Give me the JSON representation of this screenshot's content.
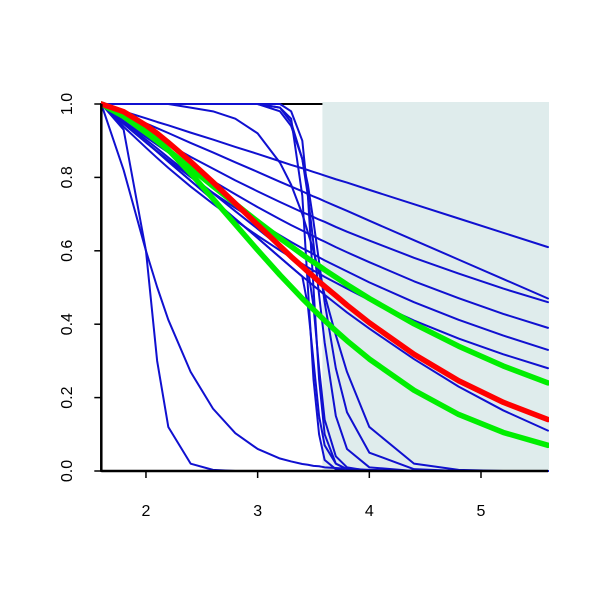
{
  "chart_data": {
    "type": "line",
    "x": [
      1.6,
      1.8,
      2.0,
      2.1,
      2.2,
      2.4,
      2.6,
      2.8,
      3.0,
      3.2,
      3.3,
      3.4,
      3.45,
      3.5,
      3.55,
      3.6,
      3.7,
      3.8,
      4.0,
      4.4,
      4.8,
      5.2,
      5.6
    ],
    "xlim": [
      1.6,
      5.6
    ],
    "ylim": [
      0,
      1
    ],
    "xticks": [
      2,
      3,
      4,
      5
    ],
    "yticks": [
      {
        "value": 0,
        "label": "0.0"
      },
      0.2,
      0.4,
      0.6,
      0.8,
      {
        "value": 1,
        "label": "1.0"
      }
    ],
    "highlight": {
      "x0": 3.58,
      "color": "#dfecec"
    },
    "series": [
      {
        "color": "#1010d0",
        "values": [
          1,
          0.98,
          0.961,
          0.951,
          0.942,
          0.922,
          0.903,
          0.883,
          0.864,
          0.844,
          0.834,
          0.825,
          0.82,
          0.815,
          0.81,
          0.805,
          0.795,
          0.786,
          0.766,
          0.727,
          0.688,
          0.649,
          0.61
        ]
      },
      {
        "color": "#1010d0",
        "values": [
          1,
          0.974,
          0.947,
          0.934,
          0.921,
          0.894,
          0.868,
          0.841,
          0.815,
          0.788,
          0.775,
          0.762,
          0.755,
          0.748,
          0.742,
          0.735,
          0.722,
          0.709,
          0.682,
          0.629,
          0.576,
          0.523,
          0.47
        ]
      },
      {
        "color": "#1010d0",
        "values": [
          1,
          0.962,
          0.925,
          0.908,
          0.89,
          0.856,
          0.824,
          0.792,
          0.762,
          0.733,
          0.719,
          0.705,
          0.699,
          0.692,
          0.685,
          0.679,
          0.665,
          0.652,
          0.628,
          0.581,
          0.538,
          0.497,
          0.46
        ]
      },
      {
        "color": "#1010d0",
        "values": [
          1,
          0.954,
          0.91,
          0.889,
          0.868,
          0.828,
          0.79,
          0.754,
          0.719,
          0.686,
          0.67,
          0.655,
          0.647,
          0.64,
          0.632,
          0.625,
          0.61,
          0.596,
          0.569,
          0.517,
          0.471,
          0.428,
          0.39
        ]
      },
      {
        "color": "#1010d0",
        "values": [
          1,
          0.946,
          0.895,
          0.871,
          0.847,
          0.801,
          0.758,
          0.717,
          0.679,
          0.642,
          0.624,
          0.607,
          0.599,
          0.591,
          0.582,
          0.574,
          0.559,
          0.544,
          0.514,
          0.46,
          0.412,
          0.369,
          0.33
        ]
      },
      {
        "color": "#1010d0",
        "values": [
          1,
          0.938,
          0.881,
          0.853,
          0.826,
          0.775,
          0.728,
          0.683,
          0.641,
          0.601,
          0.582,
          0.564,
          0.555,
          0.546,
          0.538,
          0.529,
          0.513,
          0.497,
          0.466,
          0.41,
          0.361,
          0.318,
          0.28
        ]
      },
      {
        "color": "#1010d0",
        "values": [
          1,
          0.948,
          0.896,
          0.87,
          0.843,
          0.791,
          0.739,
          0.687,
          0.635,
          0.582,
          0.556,
          0.53,
          0.518,
          0.505,
          0.493,
          0.48,
          0.456,
          0.432,
          0.388,
          0.305,
          0.23,
          0.165,
          0.11
        ]
      },
      {
        "color": "#1010d0",
        "values": [
          1,
          0.948,
          0.896,
          0.87,
          0.843,
          0.791,
          0.739,
          0.687,
          0.635,
          0.582,
          0.556,
          0.53,
          0.45,
          0.3,
          0.15,
          0.07,
          0.02,
          0.005,
          0,
          0,
          0,
          0,
          0
        ]
      },
      {
        "color": "#1010d0",
        "values": [
          1,
          0.951,
          0.903,
          0.879,
          0.854,
          0.806,
          0.757,
          0.708,
          0.66,
          0.611,
          0.587,
          0.563,
          0.55,
          0.45,
          0.28,
          0.14,
          0.04,
          0.01,
          0,
          0,
          0,
          0,
          0
        ]
      },
      {
        "color": "#1010d0",
        "values": [
          1,
          1,
          1,
          1,
          1,
          1,
          1,
          1,
          1,
          0.99,
          0.96,
          0.75,
          0.5,
          0.25,
          0.1,
          0.03,
          0.005,
          0,
          0,
          0,
          0,
          0,
          0
        ]
      },
      {
        "color": "#1010d0",
        "values": [
          1,
          1,
          1,
          1,
          1,
          1,
          1,
          1,
          1,
          1,
          0.98,
          0.9,
          0.75,
          0.5,
          0.25,
          0.1,
          0.02,
          0.005,
          0,
          0,
          0,
          0,
          0
        ]
      },
      {
        "color": "#1010d0",
        "values": [
          1,
          1,
          1,
          1,
          1,
          1,
          1,
          1,
          1,
          0.99,
          0.95,
          0.85,
          0.75,
          0.62,
          0.48,
          0.35,
          0.15,
          0.06,
          0.01,
          0,
          0,
          0,
          0
        ]
      },
      {
        "color": "#1010d0",
        "values": [
          1,
          1,
          1,
          1,
          1,
          0.99,
          0.98,
          0.96,
          0.92,
          0.84,
          0.78,
          0.7,
          0.65,
          0.6,
          0.54,
          0.48,
          0.37,
          0.27,
          0.12,
          0.02,
          0.003,
          0,
          0
        ]
      },
      {
        "color": "#1010d0",
        "values": [
          1,
          1,
          1,
          1,
          1,
          1,
          1,
          1,
          1,
          0.98,
          0.94,
          0.85,
          0.78,
          0.68,
          0.57,
          0.46,
          0.28,
          0.16,
          0.05,
          0.005,
          0,
          0,
          0
        ]
      },
      {
        "color": "#1010d0",
        "values": [
          1,
          0.93,
          0.6,
          0.3,
          0.12,
          0.02,
          0.003,
          0,
          0,
          0,
          0,
          0,
          0,
          0,
          0,
          0,
          0,
          0,
          0,
          0,
          0,
          0,
          0
        ]
      },
      {
        "color": "#1010d0",
        "values": [
          1,
          0.82,
          0.6,
          0.501,
          0.412,
          0.27,
          0.17,
          0.103,
          0.06,
          0.034,
          0.026,
          0.019,
          0.017,
          0.014,
          0.013,
          0.01,
          0.008,
          0.006,
          0.003,
          0.001,
          0,
          0,
          0
        ]
      },
      {
        "color": "#00ee00",
        "values": [
          1,
          0.966,
          0.922,
          0.899,
          0.874,
          0.825,
          0.776,
          0.728,
          0.68,
          0.634,
          0.612,
          0.59,
          0.579,
          0.569,
          0.559,
          0.548,
          0.528,
          0.508,
          0.47,
          0.401,
          0.34,
          0.286,
          0.24
        ]
      },
      {
        "color": "#00ee00",
        "values": [
          1,
          0.977,
          0.932,
          0.905,
          0.875,
          0.811,
          0.742,
          0.672,
          0.602,
          0.534,
          0.502,
          0.47,
          0.455,
          0.44,
          0.425,
          0.41,
          0.382,
          0.355,
          0.305,
          0.22,
          0.154,
          0.105,
          0.07
        ]
      },
      {
        "color": "#ff0000",
        "values": [
          1,
          0.979,
          0.942,
          0.92,
          0.895,
          0.843,
          0.787,
          0.729,
          0.671,
          0.613,
          0.584,
          0.557,
          0.543,
          0.53,
          0.516,
          0.503,
          0.478,
          0.452,
          0.404,
          0.318,
          0.246,
          0.187,
          0.14
        ]
      }
    ]
  }
}
